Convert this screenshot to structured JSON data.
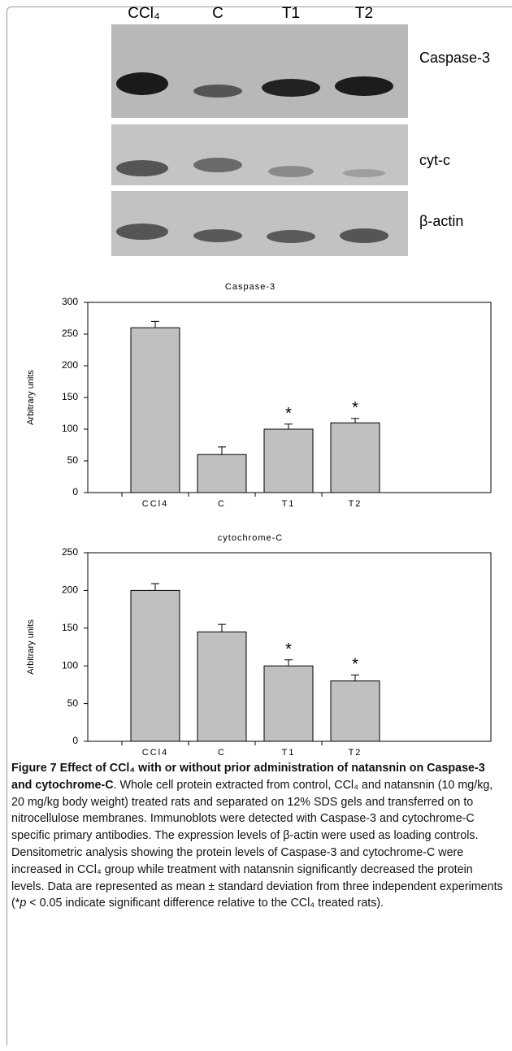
{
  "blot": {
    "lanes": [
      "CCl₄",
      "C",
      "T1",
      "T2"
    ],
    "proteins": [
      "Caspase-3",
      "cyt-c",
      "β-actin"
    ]
  },
  "chart_data": [
    {
      "type": "bar",
      "title": "Caspase-3",
      "ylabel": "Arbitrary units",
      "categories": [
        "CCl4",
        "C",
        "T1",
        "T2"
      ],
      "values": [
        260,
        60,
        100,
        110
      ],
      "errors": [
        10,
        12,
        8,
        7
      ],
      "annotations": [
        null,
        null,
        "*",
        "*"
      ],
      "color": "#c0c0c0",
      "ylim": [
        0,
        300
      ],
      "yticks": [
        0,
        50,
        100,
        150,
        200,
        250,
        300
      ]
    },
    {
      "type": "bar",
      "title": "cytochrome-C",
      "ylabel": "Arbitrary units",
      "categories": [
        "CCl4",
        "C",
        "T1",
        "T2"
      ],
      "values": [
        200,
        145,
        100,
        80
      ],
      "errors": [
        9,
        10,
        8,
        8
      ],
      "annotations": [
        null,
        null,
        "*",
        "*"
      ],
      "color": "#c0c0c0",
      "ylim": [
        0,
        250
      ],
      "yticks": [
        0,
        50,
        100,
        150,
        200,
        250
      ]
    }
  ],
  "caption": {
    "title": "Figure 7 Effect of CCl₄ with or without prior administration of natansnin on Caspase-3 and cytochrome-C",
    "body": ". Whole cell protein extracted from control, CCl₄ and natansnin (10 mg/kg, 20 mg/kg body weight) treated rats and separated on 12% SDS gels and transferred on to nitrocellulose membranes. Immunoblots were detected with Caspase-3 and cytochrome-C specific primary antibodies. The expression levels of β-actin were used as loading controls. Densitometric analysis showing the protein levels of Caspase-3 and cytochrome-C were increased in CCl₄ group while treatment with natansnin significantly decreased the protein levels. Data are represented as mean ± standard deviation from three independent experiments (*",
    "italic": "p",
    "end": " < 0.05 indicate significant difference relative to the CCl₄ treated rats)."
  }
}
